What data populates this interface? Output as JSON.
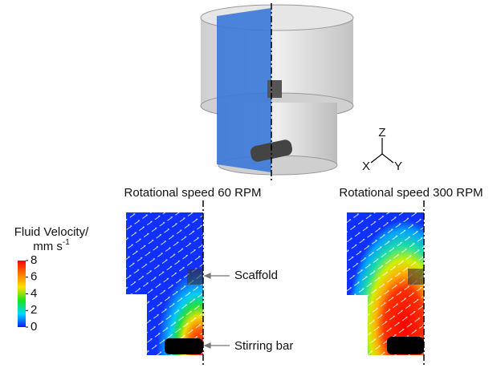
{
  "figure": {
    "panels": [
      {
        "title": "Rotational speed 60 RPM"
      },
      {
        "title": "Rotational speed 300 RPM"
      }
    ],
    "annotations": {
      "scaffold": "Scaffold",
      "stirring_bar": "Stirring bar"
    },
    "triad": {
      "z": "Z",
      "x": "X",
      "y": "Y"
    },
    "colorbar": {
      "title": "Fluid Velocity/",
      "unit": "mm s",
      "unit_exponent": "-1",
      "range": [
        0,
        8
      ],
      "ticks": [
        0,
        2,
        4,
        6,
        8
      ],
      "colors": [
        "#0a1aff",
        "#00d8ff",
        "#18e418",
        "#ffe000",
        "#ff7a00",
        "#ff0000"
      ]
    }
  }
}
